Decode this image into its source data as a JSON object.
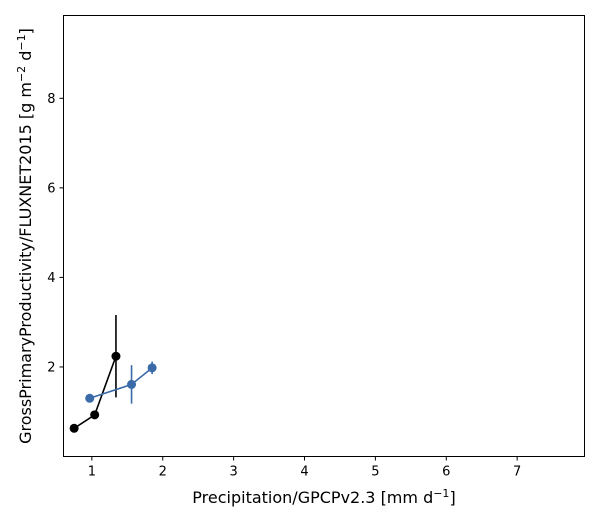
{
  "chart_data": {
    "type": "line",
    "title": "",
    "xlabel": {
      "text": "Precipitation/GPCPv2.3 [mm d",
      "sup": "−1",
      "tail": "]"
    },
    "ylabel": {
      "text": "GrossPrimaryProductivity/FLUXNET2015 [g m",
      "sup1": "−2",
      "mid": " d",
      "sup2": "−1",
      "tail": "]"
    },
    "xlim": [
      0.6,
      7.95
    ],
    "ylim": [
      0.0,
      9.85
    ],
    "xticks": [
      "1",
      "2",
      "3",
      "4",
      "5",
      "6",
      "7"
    ],
    "yticks": [
      "2",
      "4",
      "6",
      "8"
    ],
    "grid": false,
    "series": [
      {
        "color": "#000000",
        "x": [
          0.75,
          1.04,
          1.34
        ],
        "y": [
          0.63,
          0.93,
          2.24
        ],
        "yerr": [
          0.04,
          0.05,
          0.92
        ]
      },
      {
        "color": "#3a6aa8",
        "x": [
          0.97,
          1.56,
          1.85
        ],
        "y": [
          1.3,
          1.61,
          1.98
        ],
        "yerr": [
          0.04,
          0.43,
          0.14
        ]
      }
    ]
  }
}
